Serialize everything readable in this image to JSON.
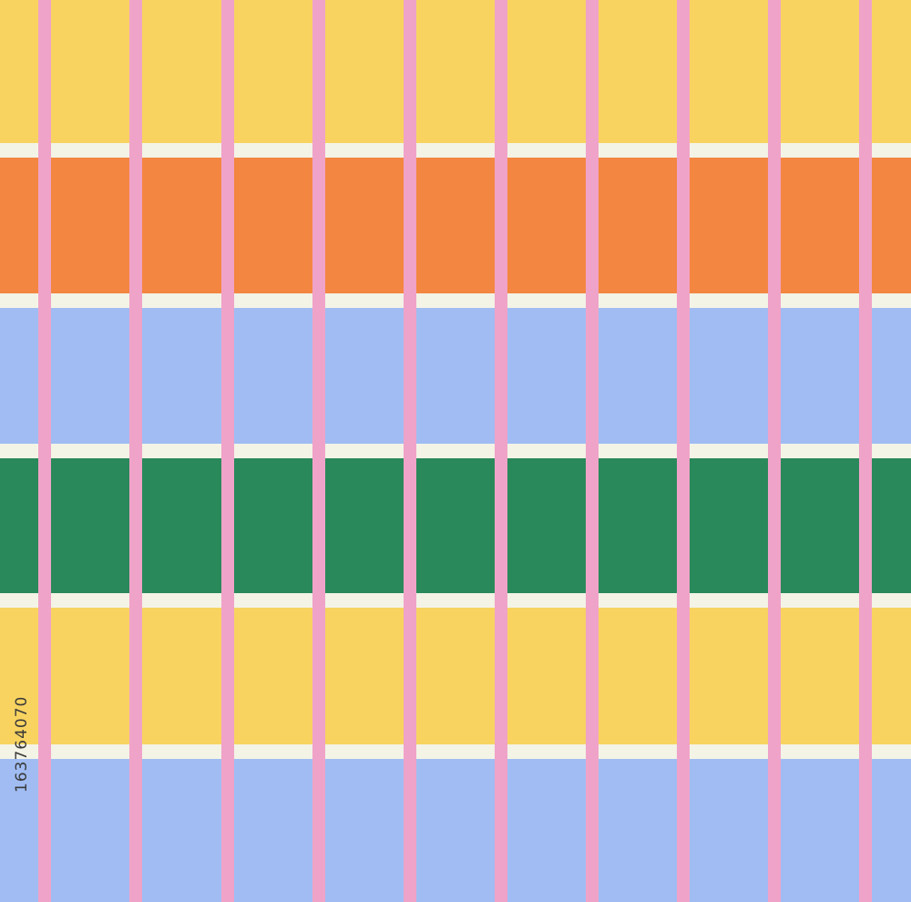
{
  "pattern": {
    "gap_color": "#f3f3e6",
    "line_color": "#f0a3c8",
    "bands": [
      {
        "name": "yellow",
        "color": "#f8d360"
      },
      {
        "name": "orange",
        "color": "#f38641"
      },
      {
        "name": "blue",
        "color": "#a0bcf3"
      },
      {
        "name": "green",
        "color": "#2a895b"
      },
      {
        "name": "yellow",
        "color": "#f8d360"
      },
      {
        "name": "blue",
        "color": "#a0bcf3"
      }
    ],
    "vertical_line_count": 10
  },
  "watermark": {
    "id_text": "163764070"
  }
}
